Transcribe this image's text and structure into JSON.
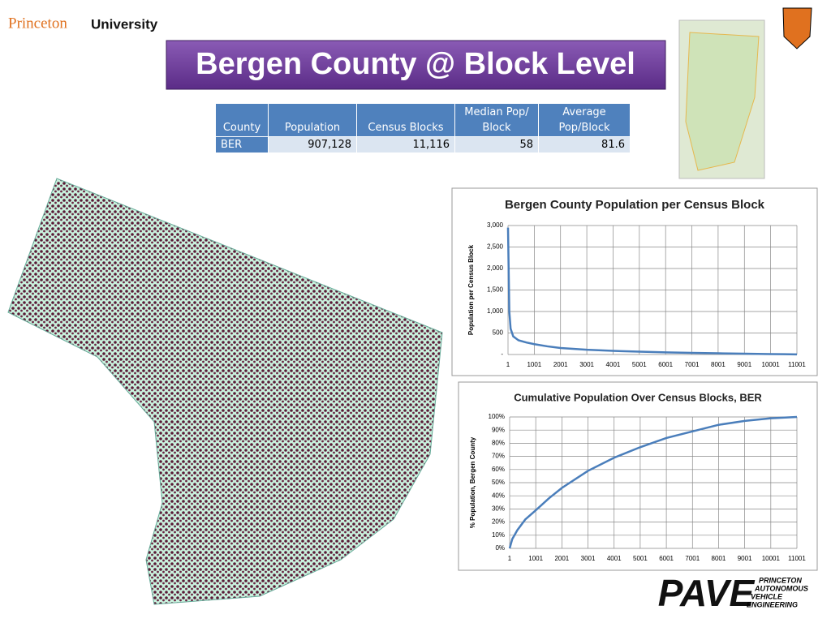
{
  "slide": {
    "logo": {
      "first": "Princeton",
      "second": "University"
    },
    "title": "Bergen County @ Block Level",
    "table": {
      "header": [
        "County",
        "Population",
        "Census Blocks",
        "Median Pop/ Block",
        "Average Pop/Block"
      ],
      "rows": [
        [
          "BER",
          "907,128",
          "11,116",
          "58",
          "81.6"
        ]
      ]
    },
    "footer_logo": {
      "mark": "PAVE",
      "lines": [
        "PRINCETON",
        "AUTONOMOUS",
        "VEHICLE",
        "ENGINEERING"
      ]
    }
  },
  "chart_data": [
    {
      "type": "line",
      "title": "Bergen County Population per Census Block",
      "y_label": "Population  per Census Block",
      "x": [
        1,
        50,
        100,
        200,
        400,
        700,
        1001,
        1500,
        2001,
        3001,
        4001,
        5001,
        6001,
        7001,
        8001,
        9001,
        10001,
        10500,
        11001
      ],
      "values": [
        2950,
        1000,
        600,
        420,
        330,
        280,
        240,
        190,
        150,
        110,
        85,
        65,
        50,
        38,
        28,
        18,
        10,
        6,
        2
      ],
      "color": "#4a7ebb",
      "xlim": [
        1,
        11001
      ],
      "ylim": [
        0,
        3000
      ],
      "xticks": [
        1,
        1001,
        2001,
        3001,
        4001,
        5001,
        6001,
        7001,
        8001,
        9001,
        10001,
        11001
      ],
      "yticks": [
        {
          "value": 0,
          "label": "-"
        },
        500,
        {
          "value": 1000,
          "label": "1,000"
        },
        {
          "value": 1500,
          "label": "1,500"
        },
        {
          "value": 2000,
          "label": "2,000"
        },
        {
          "value": 2500,
          "label": "2,500"
        },
        {
          "value": 3000,
          "label": "3,000"
        }
      ],
      "grid": true
    },
    {
      "type": "line",
      "title": "Cumulative Population  Over Census Blocks, BER",
      "y_label": "% Population, Bergen County",
      "x": [
        1,
        100,
        300,
        600,
        1001,
        1500,
        2001,
        3001,
        4001,
        5001,
        6001,
        7001,
        8001,
        9001,
        10001,
        11001
      ],
      "values": [
        0,
        7,
        14,
        22,
        29,
        38,
        46,
        59,
        69,
        77,
        84,
        89,
        94,
        97,
        99,
        100
      ],
      "color": "#4a7ebb",
      "xlim": [
        1,
        11001
      ],
      "ylim": [
        0,
        100
      ],
      "xticks": [
        1,
        1001,
        2001,
        3001,
        4001,
        5001,
        6001,
        7001,
        8001,
        9001,
        10001,
        11001
      ],
      "yticks": [
        {
          "value": 0,
          "label": "0%"
        },
        {
          "value": 10,
          "label": "10%"
        },
        {
          "value": 20,
          "label": "20%"
        },
        {
          "value": 30,
          "label": "30%"
        },
        {
          "value": 40,
          "label": "40%"
        },
        {
          "value": 50,
          "label": "50%"
        },
        {
          "value": 60,
          "label": "60%"
        },
        {
          "value": 70,
          "label": "70%"
        },
        {
          "value": 80,
          "label": "80%"
        },
        {
          "value": 90,
          "label": "90%"
        },
        {
          "value": 100,
          "label": "100%"
        }
      ],
      "grid": true
    }
  ]
}
